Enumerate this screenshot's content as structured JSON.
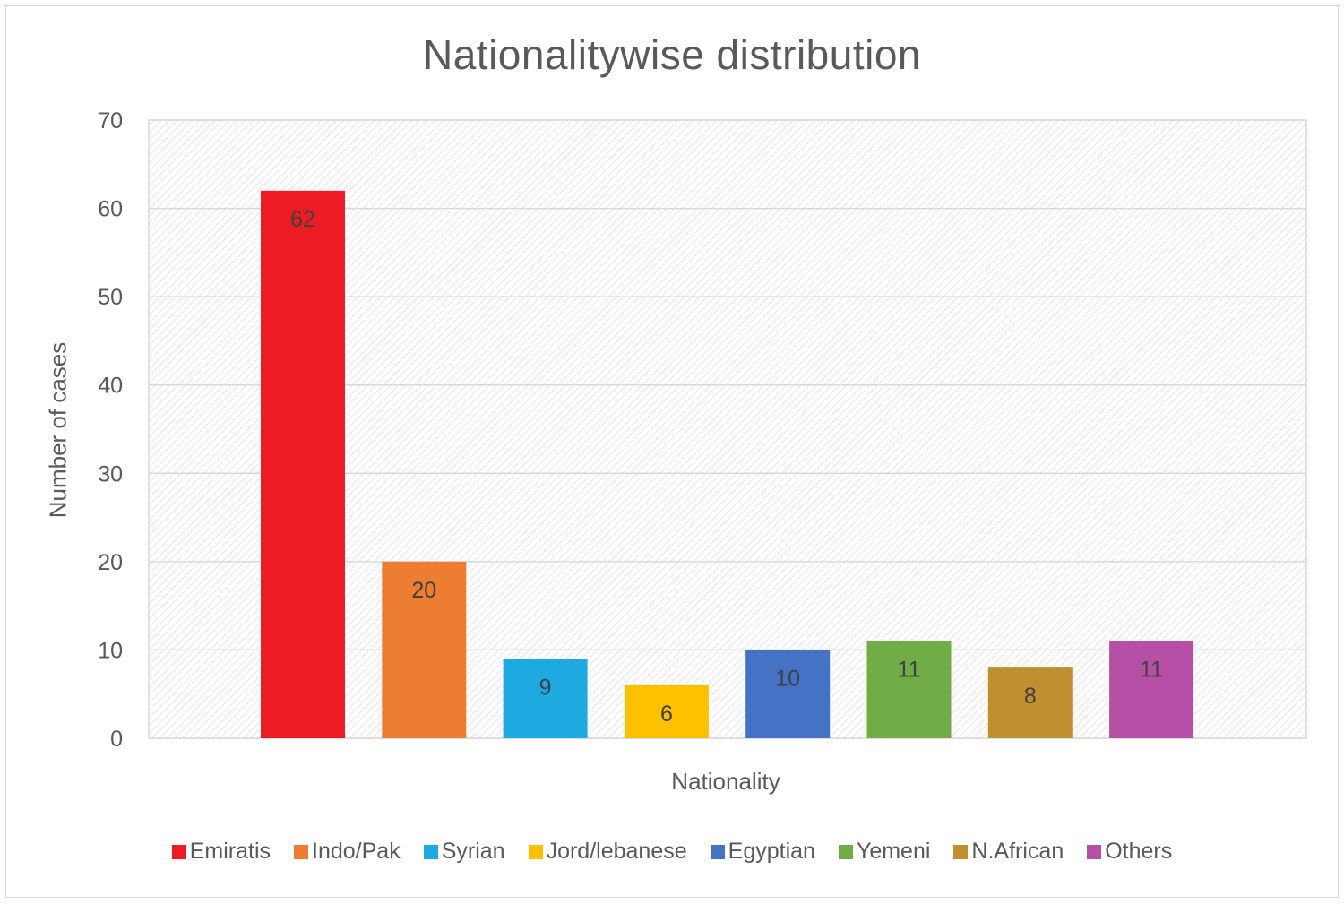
{
  "chart_data": {
    "type": "bar",
    "title": "Nationalitywise distribution",
    "xlabel": "Nationality",
    "ylabel": "Number of cases",
    "categories": [
      "Emiratis",
      "Indo/Pak",
      "Syrian",
      "Jord/lebanese",
      "Egyptian",
      "Yemeni",
      "N.African",
      "Others"
    ],
    "values": [
      62,
      20,
      9,
      6,
      10,
      11,
      8,
      11
    ],
    "colors": [
      "#ed1c24",
      "#ed7d31",
      "#1fa9e1",
      "#ffc000",
      "#4472c4",
      "#70ad47",
      "#bf9030",
      "#b74fa6"
    ],
    "ylim": [
      0,
      70
    ],
    "yticks": [
      "0",
      "10",
      "20",
      "30",
      "40",
      "50",
      "60",
      "70"
    ],
    "grid": true,
    "legend_position": "bottom",
    "data_labels": [
      "62",
      "20",
      "9",
      "6",
      "10",
      "11",
      "8",
      "11"
    ]
  }
}
